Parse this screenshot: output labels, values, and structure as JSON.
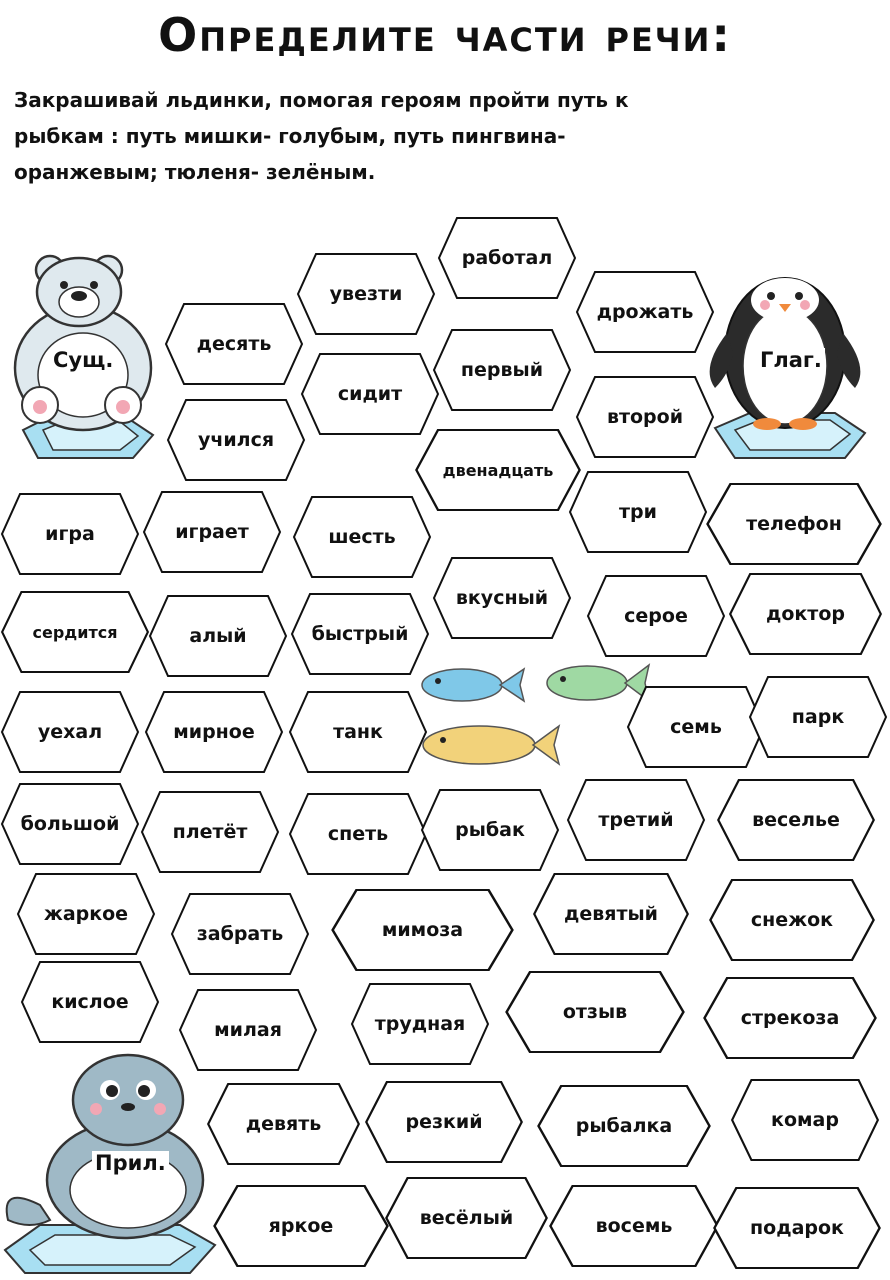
{
  "title": "Определите части речи:",
  "instructions": [
    "Закрашивай льдинки, помогая героям пройти путь к",
    "рыбкам : путь мишки- голубым, путь пингвина-",
    "оранжевым; тюленя- зелёным."
  ],
  "characters": {
    "bear_label": "Сущ.",
    "penguin_label": "Глаг.",
    "seal_label": "Прил."
  },
  "fish_colors": [
    "#7fc8e8",
    "#9fd9a3",
    "#f2d27a"
  ],
  "hexes": [
    "увезти",
    "работал",
    "десять",
    "дрожать",
    "первый",
    "сидит",
    "второй",
    "учился",
    "двенадцать",
    "игра",
    "играет",
    "шесть",
    "три",
    "телефон",
    "сердится",
    "алый",
    "быстрый",
    "вкусный",
    "серое",
    "доктор",
    "уехал",
    "мирное",
    "танк",
    "семь",
    "парк",
    "большой",
    "плетёт",
    "спеть",
    "рыбак",
    "третий",
    "веселье",
    "жаркое",
    "забрать",
    "мимоза",
    "девятый",
    "снежок",
    "кислое",
    "милая",
    "трудная",
    "отзыв",
    "стрекоза",
    "девять",
    "резкий",
    "рыбалка",
    "комар",
    "яркое",
    "весёлый",
    "восемь",
    "подарок"
  ]
}
